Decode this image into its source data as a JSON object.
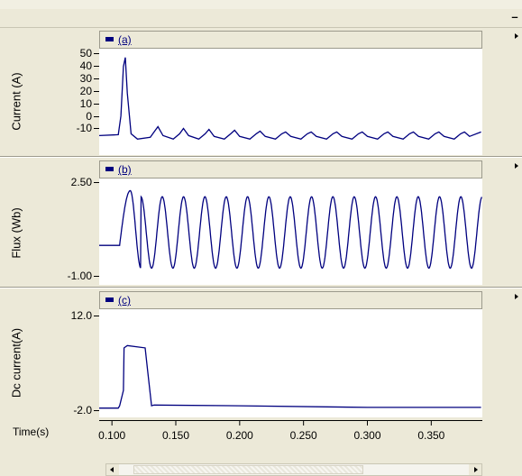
{
  "window": {
    "minimize_glyph": "–"
  },
  "x_axis": {
    "label": "Time(s)",
    "ticks": [
      "0.100",
      "0.150",
      "0.200",
      "0.250",
      "0.300",
      "0.350"
    ]
  },
  "panels": [
    {
      "legend": "(a)",
      "ylabel": "Current (A)",
      "yticks": [
        "50",
        "40",
        "30",
        "20",
        "10",
        "0",
        "-10"
      ]
    },
    {
      "legend": "(b)",
      "ylabel": "Flux (Wb)",
      "yticks": [
        "2.50",
        "-1.00"
      ]
    },
    {
      "legend": "(c)",
      "ylabel": "Dc current(A)",
      "yticks": [
        "12.0",
        "-2.0"
      ]
    }
  ],
  "colors": {
    "trace": "#00007f",
    "legend_swatch": "#00007f"
  },
  "chart_data": [
    {
      "type": "line",
      "title": "(a)",
      "xlabel": "Time(s)",
      "ylabel": "Current (A)",
      "ylim": [
        -10,
        50
      ],
      "xlim": [
        0.09,
        0.39
      ],
      "series": [
        {
          "name": "(a)",
          "x": [
            0.09,
            0.105,
            0.107,
            0.109,
            0.1105,
            0.112,
            0.115,
            0.12,
            0.13,
            0.133,
            0.136,
            0.14,
            0.148,
            0.153,
            0.156,
            0.16,
            0.168,
            0.173,
            0.176,
            0.18,
            0.188,
            0.193,
            0.196,
            0.2,
            0.208,
            0.213,
            0.216,
            0.22,
            0.228,
            0.233,
            0.236,
            0.24,
            0.248,
            0.253,
            0.256,
            0.26,
            0.268,
            0.273,
            0.276,
            0.28,
            0.288,
            0.293,
            0.296,
            0.3,
            0.308,
            0.313,
            0.316,
            0.32,
            0.328,
            0.333,
            0.336,
            0.34,
            0.348,
            0.353,
            0.356,
            0.36,
            0.368,
            0.373,
            0.376,
            0.38,
            0.389
          ],
          "y": [
            1,
            1.5,
            12,
            40,
            45,
            25,
            2,
            -1,
            0,
            3,
            6,
            1,
            -1,
            2,
            5,
            1,
            -1,
            2,
            4.5,
            0.5,
            -1,
            2,
            4,
            0.5,
            -1,
            2,
            3.5,
            0.5,
            -1,
            2,
            3,
            0.5,
            -1,
            2,
            3,
            0.5,
            -1,
            2,
            3,
            0.5,
            -1,
            2,
            3,
            0.5,
            -1,
            2,
            3,
            0.5,
            -1,
            2,
            3,
            0.5,
            -1,
            2,
            3,
            0.5,
            -1,
            2,
            3,
            0.5,
            3
          ]
        }
      ]
    },
    {
      "type": "line",
      "title": "(b)",
      "xlabel": "Time(s)",
      "ylabel": "Flux (Wb)",
      "ylim": [
        -1.0,
        2.5
      ],
      "xlim": [
        0.09,
        0.39
      ],
      "series": [
        {
          "name": "(b)",
          "params": {
            "start": 0.106,
            "period": 0.0167,
            "first_peak": 2.1,
            "peak": 1.9,
            "trough": -0.45,
            "pre_value": 0.3
          }
        }
      ]
    },
    {
      "type": "line",
      "title": "(c)",
      "xlabel": "Time(s)",
      "ylabel": "Dc current(A)",
      "ylim": [
        -2.0,
        12.0
      ],
      "xlim": [
        0.09,
        0.39
      ],
      "series": [
        {
          "name": "(c)",
          "x": [
            0.09,
            0.105,
            0.106,
            0.109,
            0.1095,
            0.112,
            0.126,
            0.128,
            0.131,
            0.133,
            0.2,
            0.3,
            0.389
          ],
          "y": [
            -0.8,
            -0.8,
            -0.5,
            1.5,
            7,
            7.3,
            7.0,
            4,
            -0.5,
            -0.4,
            -0.5,
            -0.7,
            -0.7
          ]
        }
      ]
    }
  ]
}
